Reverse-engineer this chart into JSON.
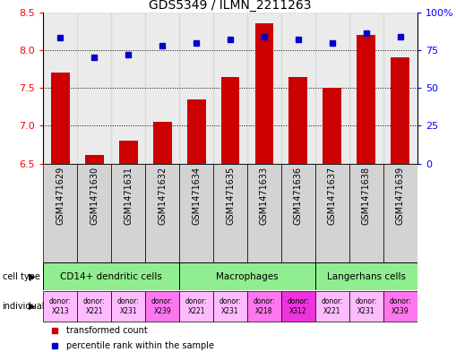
{
  "title": "GDS5349 / ILMN_2211263",
  "samples": [
    "GSM1471629",
    "GSM1471630",
    "GSM1471631",
    "GSM1471632",
    "GSM1471634",
    "GSM1471635",
    "GSM1471633",
    "GSM1471636",
    "GSM1471637",
    "GSM1471638",
    "GSM1471639"
  ],
  "transformed_counts": [
    7.7,
    6.62,
    6.8,
    7.05,
    7.35,
    7.65,
    8.35,
    7.65,
    7.5,
    8.2,
    7.9
  ],
  "percentile_ranks": [
    83,
    70,
    72,
    78,
    80,
    82,
    84,
    82,
    80,
    86,
    84
  ],
  "ylim_left": [
    6.5,
    8.5
  ],
  "ylim_right": [
    0,
    100
  ],
  "yticks_left": [
    6.5,
    7.0,
    7.5,
    8.0,
    8.5
  ],
  "yticks_right": [
    0,
    25,
    50,
    75,
    100
  ],
  "ytick_labels_right": [
    "0",
    "25",
    "50",
    "75",
    "100%"
  ],
  "cell_type_groups": [
    {
      "label": "CD14+ dendritic cells",
      "indices": [
        0,
        1,
        2,
        3
      ]
    },
    {
      "label": "Macrophages",
      "indices": [
        4,
        5,
        6,
        7
      ]
    },
    {
      "label": "Langerhans cells",
      "indices": [
        8,
        9,
        10
      ]
    }
  ],
  "cell_type_color": "#90EE90",
  "individuals": [
    {
      "label": "donor:\nX213",
      "color": "#FFBBFF"
    },
    {
      "label": "donor:\nX221",
      "color": "#FFBBFF"
    },
    {
      "label": "donor:\nX231",
      "color": "#FFBBFF"
    },
    {
      "label": "donor:\nX239",
      "color": "#FF77EE"
    },
    {
      "label": "donor:\nX221",
      "color": "#FFBBFF"
    },
    {
      "label": "donor:\nX231",
      "color": "#FFBBFF"
    },
    {
      "label": "donor:\nX218",
      "color": "#FF77EE"
    },
    {
      "label": "donor:\nX312",
      "color": "#EE33DD"
    },
    {
      "label": "donor:\nX221",
      "color": "#FFBBFF"
    },
    {
      "label": "donor:\nX231",
      "color": "#FFBBFF"
    },
    {
      "label": "donor:\nX239",
      "color": "#FF77EE"
    }
  ],
  "bar_color": "#CC0000",
  "dot_color": "#0000CC",
  "bg_color": "#FFFFFF",
  "sample_bg_color": "#D3D3D3",
  "cell_type_row_label": "cell type",
  "individual_row_label": "individual",
  "legend_bar": "transformed count",
  "legend_dot": "percentile rank within the sample",
  "bar_width": 0.55,
  "sample_label_fontsize": 7.0,
  "axis_label_fontsize": 8.0,
  "title_fontsize": 10
}
